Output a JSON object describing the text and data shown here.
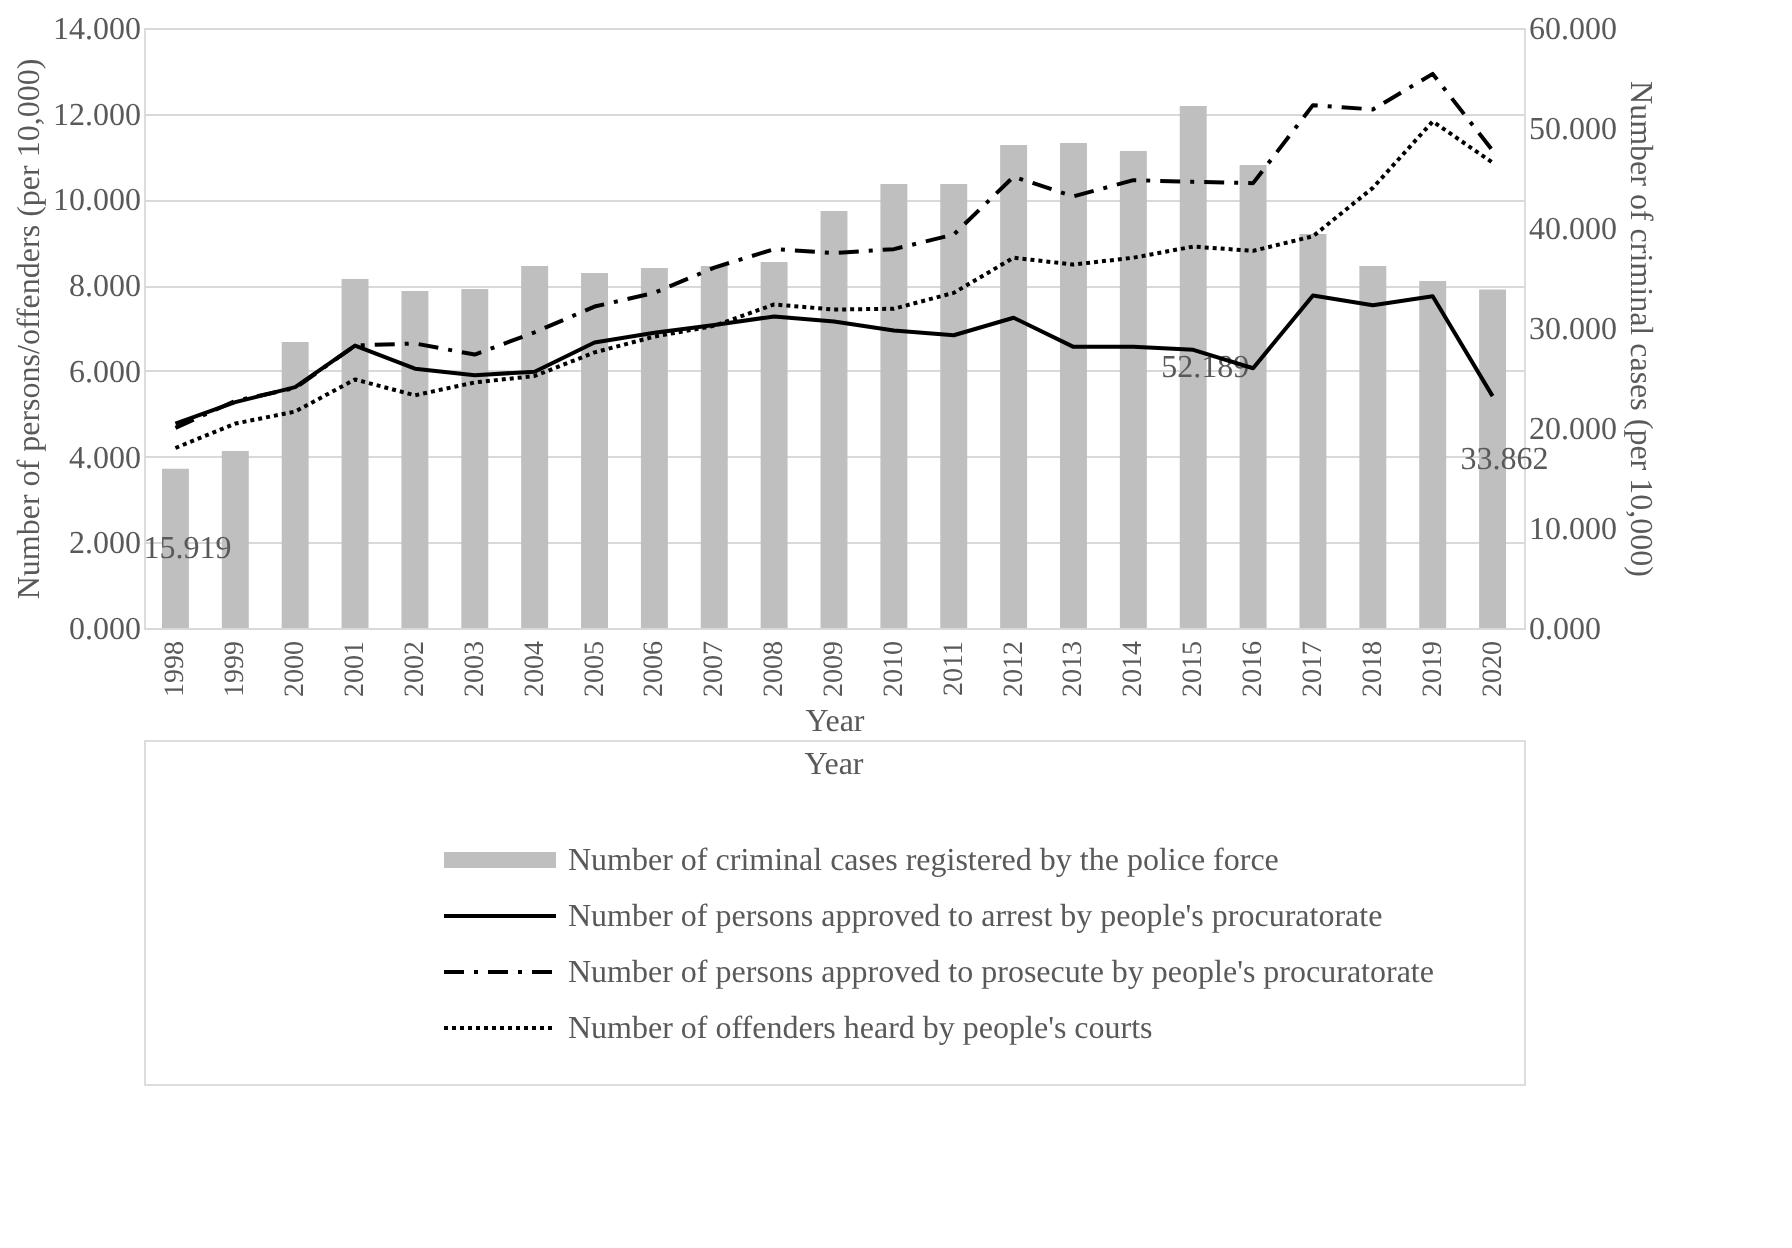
{
  "chart_data": {
    "type": "bar",
    "xlabel": "Year",
    "ylabel": "Number of persons/offenders (per 10,000)",
    "y2label": "Number of criminal cases (per 10,000)",
    "annotations": [
      "Year"
    ],
    "categories": [
      "1998",
      "1999",
      "2000",
      "2001",
      "2002",
      "2003",
      "2004",
      "2005",
      "2006",
      "2007",
      "2008",
      "2009",
      "2010",
      "2011",
      "2012",
      "2013",
      "2014",
      "2015",
      "2016",
      "2017",
      "2018",
      "2019",
      "2020"
    ],
    "ylim": [
      0,
      14
    ],
    "yticks": [
      {
        "value": 0,
        "label": "0.000"
      },
      {
        "value": 2,
        "label": "2.000"
      },
      {
        "value": 4,
        "label": "4.000"
      },
      {
        "value": 6,
        "label": "6.000"
      },
      {
        "value": 8,
        "label": "8.000"
      },
      {
        "value": 10,
        "label": "10.000"
      },
      {
        "value": 12,
        "label": "12.000"
      },
      {
        "value": 14,
        "label": "14.000"
      }
    ],
    "y2lim": [
      0,
      60
    ],
    "y2ticks": [
      {
        "value": 0,
        "label": "0.000"
      },
      {
        "value": 10,
        "label": "10.000"
      },
      {
        "value": 20,
        "label": "20.000"
      },
      {
        "value": 30,
        "label": "30.000"
      },
      {
        "value": 40,
        "label": "40.000"
      },
      {
        "value": 50,
        "label": "50.000"
      },
      {
        "value": 60,
        "label": "60.000"
      }
    ],
    "grid": "y",
    "legend": "bottom",
    "series": [
      {
        "name": "Number of criminal cases registered by the police force",
        "axis": "y2",
        "color": "#bfbfbf",
        "values": [
          15.919,
          17.7,
          28.6,
          34.9,
          33.7,
          33.9,
          36.2,
          35.5,
          36.0,
          36.2,
          36.6,
          41.7,
          44.4,
          44.4,
          48.3,
          48.5,
          47.7,
          52.189,
          46.3,
          39.4,
          36.2,
          34.7,
          33.862
        ],
        "value_labels": [
          "15.919",
          null,
          null,
          null,
          null,
          null,
          null,
          null,
          null,
          null,
          null,
          null,
          null,
          null,
          null,
          null,
          null,
          "52.189",
          null,
          null,
          null,
          null,
          "33.862"
        ]
      },
      {
        "name": "Number of  persons approved to arrest by people's procuratorate",
        "type": "line",
        "line_style": "solid",
        "color": "#000000",
        "values": [
          4.77,
          5.27,
          5.62,
          6.59,
          6.05,
          5.9,
          5.98,
          6.66,
          6.89,
          7.07,
          7.27,
          7.15,
          6.94,
          6.83,
          7.24,
          6.56,
          6.56,
          6.49,
          6.06,
          7.76,
          7.53,
          7.74,
          5.41
        ]
      },
      {
        "name": "Number of  persons approved to prosecute by people's procuratorate",
        "type": "line",
        "line_style": "dashdot",
        "color": "#000000",
        "values": [
          4.67,
          5.3,
          5.6,
          6.59,
          6.64,
          6.38,
          6.9,
          7.5,
          7.82,
          8.41,
          8.84,
          8.75,
          8.84,
          9.18,
          10.53,
          10.07,
          10.45,
          10.41,
          10.38,
          12.2,
          12.1,
          12.93,
          11.14
        ]
      },
      {
        "name": "Number of offenders heard by people's courts",
        "type": "line",
        "line_style": "dotted",
        "color": "#000000",
        "values": [
          4.2,
          4.77,
          5.05,
          5.8,
          5.43,
          5.73,
          5.88,
          6.43,
          6.8,
          7.05,
          7.55,
          7.43,
          7.45,
          7.82,
          8.64,
          8.48,
          8.64,
          8.9,
          8.8,
          9.14,
          10.27,
          11.82,
          10.86
        ]
      }
    ]
  }
}
